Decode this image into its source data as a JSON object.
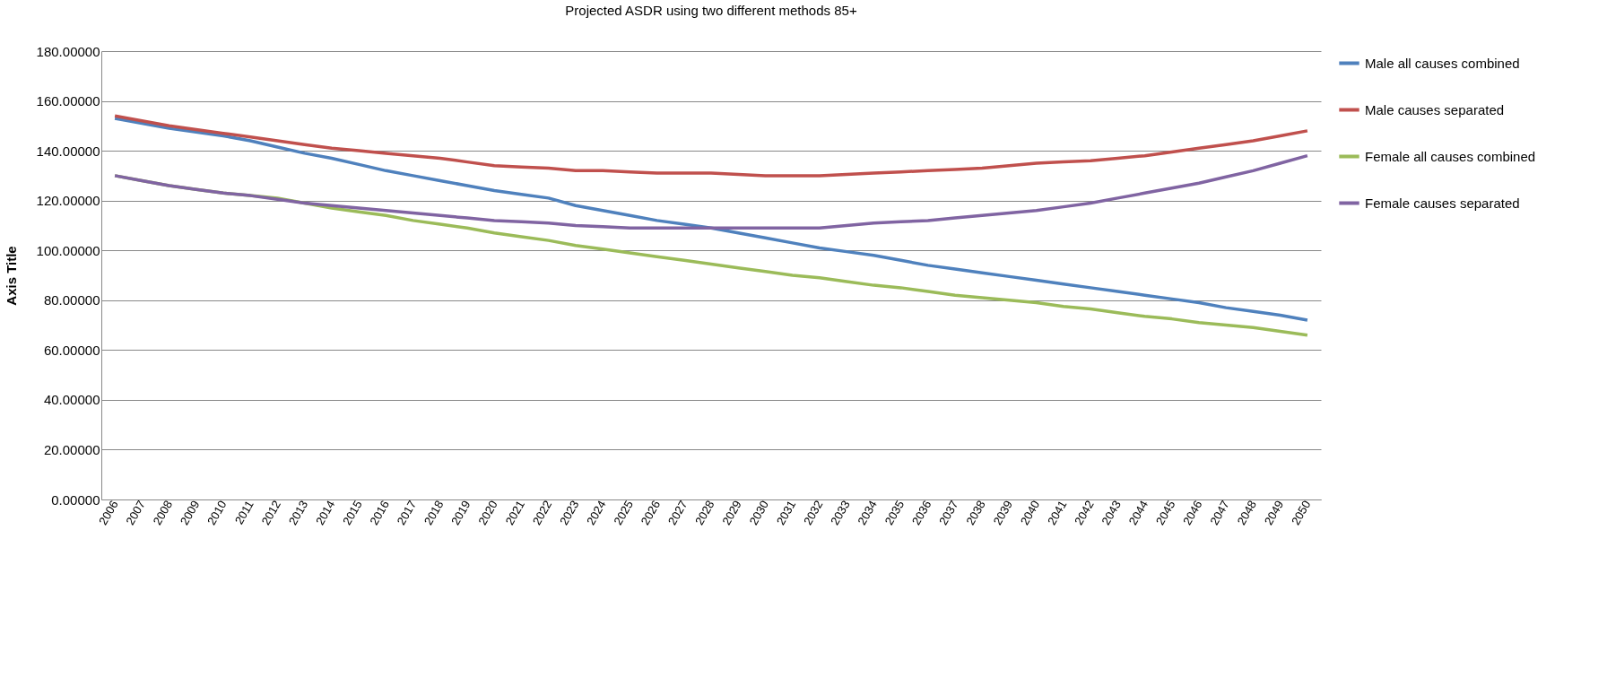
{
  "chart_data": {
    "type": "line",
    "title": "Projected ASDR using two different methods 85+",
    "ylabel": "Axis Title",
    "categories": [
      "2006",
      "2007",
      "2008",
      "2009",
      "2010",
      "2011",
      "2012",
      "2013",
      "2014",
      "2015",
      "2016",
      "2017",
      "2018",
      "2019",
      "2020",
      "2021",
      "2022",
      "2023",
      "2024",
      "2025",
      "2026",
      "2027",
      "2028",
      "2029",
      "2030",
      "2031",
      "2032",
      "2033",
      "2034",
      "2035",
      "2036",
      "2037",
      "2038",
      "2039",
      "2040",
      "2041",
      "2042",
      "2043",
      "2044",
      "2045",
      "2046",
      "2047",
      "2048",
      "2049",
      "2050"
    ],
    "series": [
      {
        "name": "Male all causes combined",
        "color": "#4f81bd",
        "values": [
          153,
          151,
          149,
          147.5,
          146,
          144,
          141.5,
          139,
          137,
          134.5,
          132,
          130,
          128,
          126,
          124,
          122.5,
          121,
          118,
          116,
          114,
          112,
          110.5,
          109,
          107,
          105,
          103,
          101,
          99.5,
          98,
          96,
          94,
          92.5,
          91,
          89.5,
          88,
          86.5,
          85,
          83.5,
          82,
          80.5,
          79,
          77,
          75.5,
          74,
          72
        ]
      },
      {
        "name": "Male causes separated",
        "color": "#c0504d",
        "values": [
          154,
          152,
          150,
          148.5,
          147,
          145.5,
          144,
          142.5,
          141,
          140,
          139,
          138,
          137,
          135.5,
          134,
          133.5,
          133,
          132,
          132,
          131.5,
          131,
          131,
          131,
          130.5,
          130,
          130,
          130,
          130.5,
          131,
          131.5,
          132,
          132.5,
          133,
          134,
          135,
          135.5,
          136,
          137,
          138,
          139.5,
          141,
          142.5,
          144,
          146,
          148
        ]
      },
      {
        "name": "Female all causes combined",
        "color": "#9bbb59",
        "values": [
          130,
          128,
          126,
          124.5,
          123,
          122,
          121,
          119,
          117,
          115.5,
          114,
          112,
          110.5,
          109,
          107,
          105.5,
          104,
          102,
          100.5,
          99,
          97.5,
          96,
          94.5,
          93,
          91.5,
          90,
          89,
          87.5,
          86,
          85,
          83.5,
          82,
          81,
          80,
          79,
          77.5,
          76.5,
          75,
          73.5,
          72.5,
          71,
          70,
          69,
          67.5,
          66
        ]
      },
      {
        "name": "Female causes separated",
        "color": "#8064a2",
        "values": [
          130,
          128,
          126,
          124.5,
          123,
          122,
          120.5,
          119,
          118,
          117,
          116,
          115,
          114,
          113,
          112,
          111.5,
          111,
          110,
          109.5,
          109,
          109,
          109,
          109,
          109,
          109,
          109,
          109,
          110,
          111,
          111.5,
          112,
          113,
          114,
          115,
          116,
          117.5,
          119,
          121,
          123,
          125,
          127,
          129.5,
          132,
          135,
          138
        ]
      }
    ],
    "ylim": [
      0,
      180
    ],
    "yticks": [
      {
        "value": 0,
        "label": "0.00000"
      },
      {
        "value": 20,
        "label": "20.00000"
      },
      {
        "value": 40,
        "label": "40.00000"
      },
      {
        "value": 60,
        "label": "60.00000"
      },
      {
        "value": 80,
        "label": "80.00000"
      },
      {
        "value": 100,
        "label": "100.00000"
      },
      {
        "value": 120,
        "label": "120.00000"
      },
      {
        "value": 140,
        "label": "140.00000"
      },
      {
        "value": 160,
        "label": "160.00000"
      },
      {
        "value": 180,
        "label": "180.00000"
      }
    ],
    "grid": "y",
    "legend": "right",
    "marker": "none",
    "line_style": "solid"
  }
}
